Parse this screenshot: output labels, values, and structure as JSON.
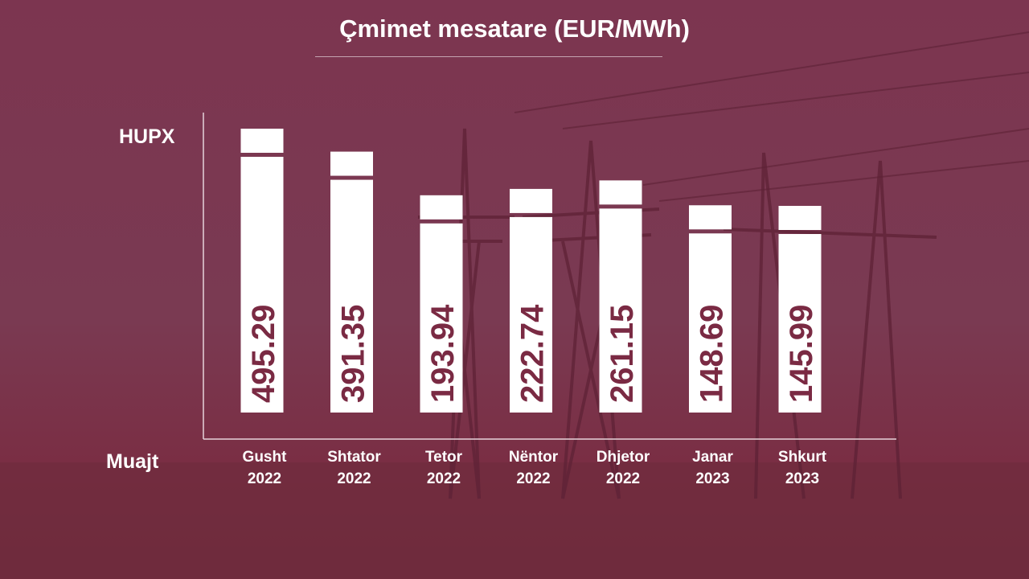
{
  "colors": {
    "background": "#7a3149",
    "bar": "#ffffff",
    "value_text": "#7a2a43",
    "axis": "#e6d3da"
  },
  "chart_data": {
    "type": "bar",
    "title": "Çmimet mesatare (EUR/MWh)",
    "series_label": "HUPX",
    "xlabel": "Muajt",
    "categories": [
      [
        "Gusht",
        "2022"
      ],
      [
        "Shtator",
        "2022"
      ],
      [
        "Tetor",
        "2022"
      ],
      [
        "Nëntor",
        "2022"
      ],
      [
        "Dhjetor",
        "2022"
      ],
      [
        "Janar",
        "2023"
      ],
      [
        "Shkurt",
        "2023"
      ]
    ],
    "value_labels": [
      "495.29",
      "391.35",
      "193.94",
      "222.74",
      "261.15",
      "148.69",
      "145.99"
    ],
    "values": [
      495.29,
      391.35,
      193.94,
      222.74,
      261.15,
      148.69,
      145.99
    ],
    "grid": false,
    "legend": "none"
  }
}
